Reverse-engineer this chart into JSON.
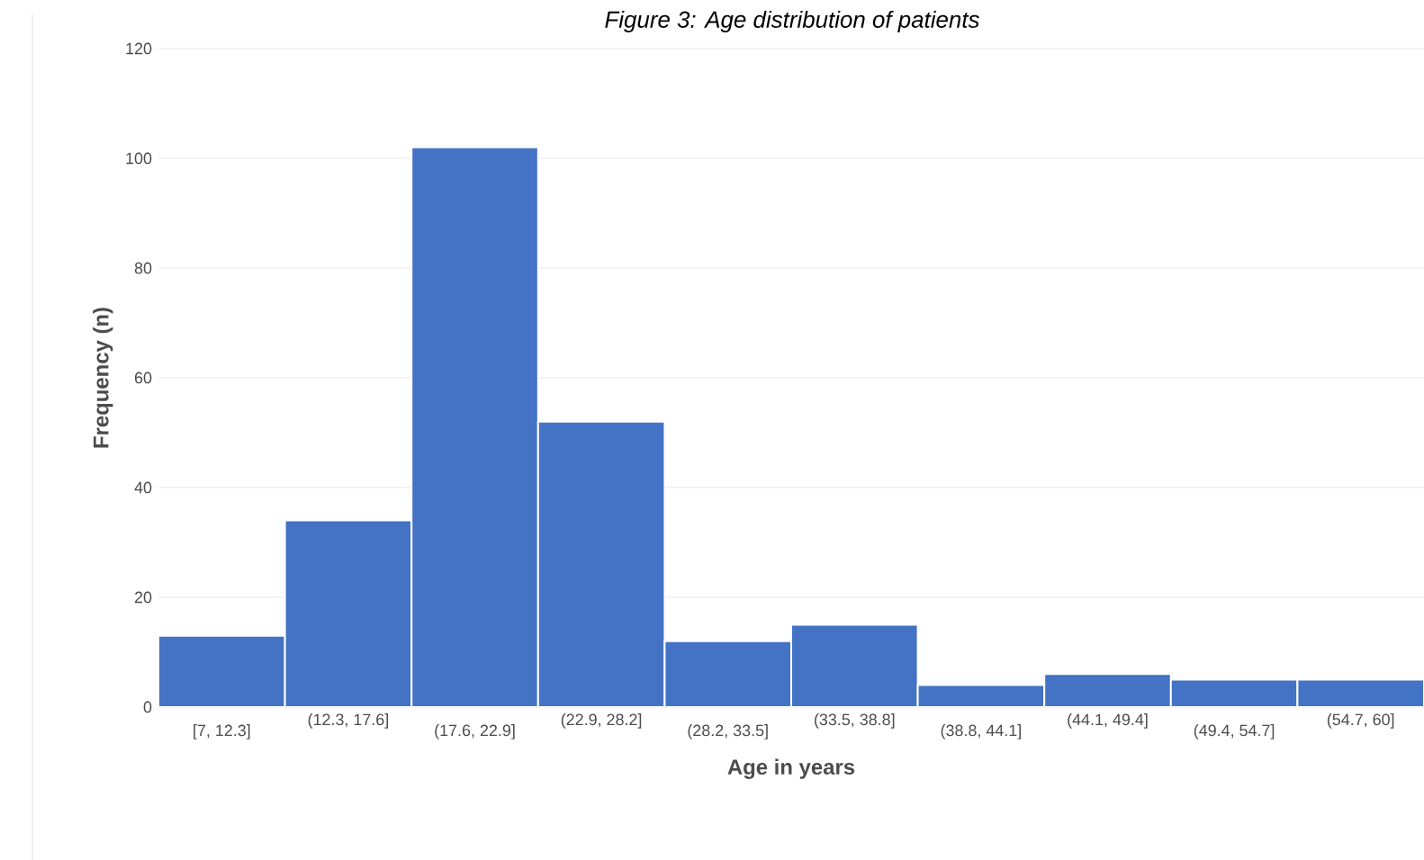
{
  "chart_data": {
    "type": "bar",
    "title": "Figure 3: Age distribution of patients",
    "xlabel": "Age in years",
    "ylabel": "Frequency (n)",
    "categories": [
      "[7, 12.3]",
      "(12.3, 17.6]",
      "(17.6, 22.9]",
      "(22.9, 28.2]",
      "(28.2, 33.5]",
      "(33.5, 38.8]",
      "(38.8, 44.1]",
      "(44.1, 49.4]",
      "(49.4, 54.7]",
      "(54.7, 60]"
    ],
    "values": [
      13,
      34,
      102,
      52,
      12,
      15,
      4,
      6,
      5,
      5
    ],
    "color": "#4472c4",
    "ylim": [
      0,
      120
    ],
    "yticks": [
      0,
      20,
      40,
      60,
      80,
      100,
      120
    ],
    "grid": "y"
  }
}
